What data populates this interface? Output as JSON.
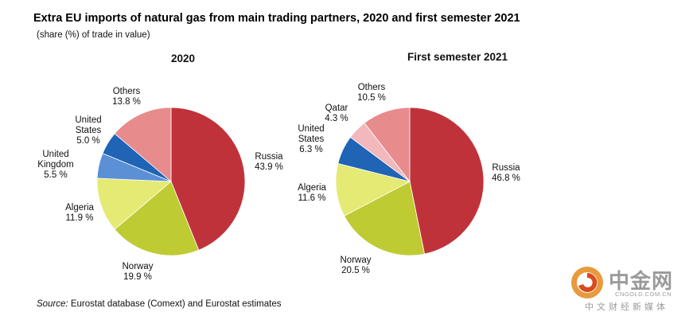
{
  "title": "Extra EU imports of natural gas from main trading partners, 2020 and first semester 2021",
  "subtitle": "(share (%) of trade in value)",
  "source": {
    "label": "Source:",
    "text": "Eurostat database (Comext) and Eurostat estimates"
  },
  "watermark": {
    "name": "中金网",
    "url": "CNGOLD.COM.CN",
    "tagline": "中文财经新媒体"
  },
  "chart_data": [
    {
      "type": "pie",
      "title": "2020",
      "slices": [
        {
          "label": "Russia",
          "value": 43.9,
          "display": "43.9 %",
          "color": "#c0323a"
        },
        {
          "label": "Norway",
          "value": 19.9,
          "display": "19.9 %",
          "color": "#bfcb32"
        },
        {
          "label": "Algeria",
          "value": 11.9,
          "display": "11.9 %",
          "color": "#e4ea74"
        },
        {
          "label": "United Kingdom",
          "value": 5.5,
          "display": "5.5 %",
          "color": "#5b8fd6"
        },
        {
          "label": "United States",
          "value": 5.0,
          "display": "5.0 %",
          "color": "#1f64b5"
        },
        {
          "label": "Others",
          "value": 13.8,
          "display": "13.8 %",
          "color": "#e88b8d"
        }
      ]
    },
    {
      "type": "pie",
      "title": "First semester 2021",
      "slices": [
        {
          "label": "Russia",
          "value": 46.8,
          "display": "46.8 %",
          "color": "#c0323a"
        },
        {
          "label": "Norway",
          "value": 20.5,
          "display": "20.5 %",
          "color": "#bfcb32"
        },
        {
          "label": "Algeria",
          "value": 11.6,
          "display": "11.6 %",
          "color": "#e4ea74"
        },
        {
          "label": "United States",
          "value": 6.3,
          "display": "6.3 %",
          "color": "#1f64b5"
        },
        {
          "label": "Qatar",
          "value": 4.3,
          "display": "4.3 %",
          "color": "#f2b8bb"
        },
        {
          "label": "Others",
          "value": 10.5,
          "display": "10.5 %",
          "color": "#e88b8d"
        }
      ]
    }
  ]
}
